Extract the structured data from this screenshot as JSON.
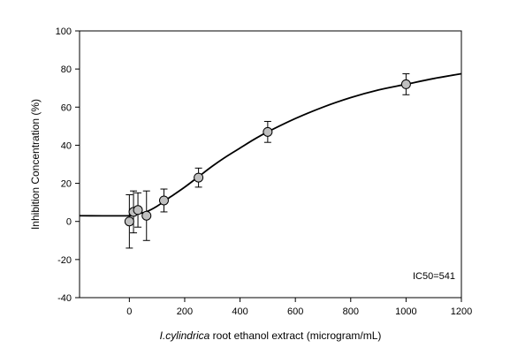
{
  "chart_data": {
    "type": "scatter",
    "xlabel_italic": "I.cylindrica",
    "xlabel_rest": " root ethanol extract (microgram/mL)",
    "ylabel": "Inhibition Concentration (%)",
    "annotation": "IC50=541",
    "xlim": [
      -180,
      1200
    ],
    "ylim": [
      -40,
      100
    ],
    "xticks": [
      0,
      200,
      400,
      600,
      800,
      1000,
      1200
    ],
    "yticks": [
      -40,
      -20,
      0,
      20,
      40,
      60,
      80,
      100
    ],
    "points": [
      {
        "x": 0,
        "y": 0,
        "err": 14
      },
      {
        "x": 15,
        "y": 5,
        "err": 11
      },
      {
        "x": 31,
        "y": 6,
        "err": 9
      },
      {
        "x": 62,
        "y": 3,
        "err": 13
      },
      {
        "x": 125,
        "y": 11,
        "err": 6
      },
      {
        "x": 250,
        "y": 23,
        "err": 5
      },
      {
        "x": 500,
        "y": 47,
        "err": 5.5
      },
      {
        "x": 1000,
        "y": 72,
        "err": 5.5
      }
    ],
    "fit_curve": {
      "x": [
        -180,
        0,
        30,
        60,
        100,
        150,
        200,
        250,
        300,
        350,
        400,
        450,
        500,
        600,
        700,
        800,
        900,
        1000,
        1100,
        1200
      ],
      "y": [
        3,
        3,
        4,
        5,
        8,
        13,
        18,
        23.5,
        29,
        34,
        38.5,
        43,
        47,
        54,
        60,
        65,
        69,
        72,
        75,
        77.5
      ]
    },
    "marker_color": "#c0c0c0",
    "line_color": "#000000"
  }
}
